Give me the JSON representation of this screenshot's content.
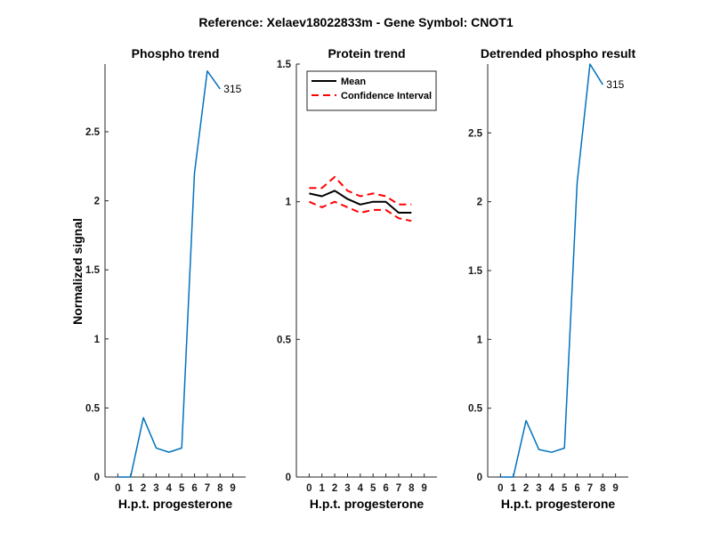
{
  "figure": {
    "title": "Reference:  Xelaev18022833m - Gene Symbol:  CNOT1",
    "ylabel": "Normalized signal"
  },
  "chart_data": [
    {
      "type": "line",
      "title": "Phospho trend",
      "xlabel": "H.p.t. progesterone",
      "ylabel": "Normalized signal",
      "xlim": [
        -1,
        10
      ],
      "ylim": [
        0,
        2.99
      ],
      "xticks": [
        0,
        1,
        2,
        3,
        4,
        5,
        6,
        7,
        8,
        9
      ],
      "yticks": [
        0,
        0.5,
        1,
        1.5,
        2,
        2.5
      ],
      "ytick_labels": [
        "0",
        "0.5",
        "1",
        "1.5",
        "2",
        "2.5"
      ],
      "series": [
        {
          "color": "#0072BD",
          "x": [
            0,
            1,
            2,
            3,
            4,
            5,
            6,
            7,
            8,
            9
          ],
          "y": [
            0,
            0,
            0.43,
            0.21,
            0.18,
            0.21,
            2.2,
            2.94,
            2.81,
            null
          ],
          "end_label": "315"
        }
      ]
    },
    {
      "type": "line",
      "title": "Protein trend",
      "xlabel": "H.p.t. progesterone",
      "ylabel": "",
      "xlim": [
        -1,
        10
      ],
      "ylim": [
        0,
        1.5
      ],
      "xticks": [
        0,
        1,
        2,
        3,
        4,
        5,
        6,
        7,
        8,
        9
      ],
      "yticks": [
        0,
        0.5,
        1,
        1.5
      ],
      "ytick_labels": [
        "0",
        "0.5",
        "1",
        "1.5"
      ],
      "legend": {
        "placement": "top-left"
      },
      "series": [
        {
          "name": "Mean",
          "color": "#000000",
          "dash": "solid",
          "x": [
            0,
            1,
            2,
            3,
            4,
            5,
            6,
            7,
            8,
            9
          ],
          "y": [
            1.03,
            1.02,
            1.04,
            1.01,
            0.99,
            1.0,
            1.0,
            0.96,
            0.96,
            null
          ]
        },
        {
          "name": "Confidence Interval",
          "color": "#FF0000",
          "dash": "dashed",
          "x": [
            0,
            1,
            2,
            3,
            4,
            5,
            6,
            7,
            8,
            9
          ],
          "y": [
            1.05,
            1.05,
            1.09,
            1.04,
            1.02,
            1.03,
            1.02,
            0.99,
            0.99,
            null
          ]
        },
        {
          "name": "",
          "color": "#FF0000",
          "dash": "dashed",
          "x": [
            0,
            1,
            2,
            3,
            4,
            5,
            6,
            7,
            8,
            9
          ],
          "y": [
            1.0,
            0.98,
            1.0,
            0.98,
            0.96,
            0.97,
            0.97,
            0.94,
            0.93,
            null
          ]
        }
      ]
    },
    {
      "type": "line",
      "title": "Detrended phospho result",
      "xlabel": "H.p.t. progesterone",
      "ylabel": "",
      "xlim": [
        -1,
        10
      ],
      "ylim": [
        0,
        3.0
      ],
      "xticks": [
        0,
        1,
        2,
        3,
        4,
        5,
        6,
        7,
        8,
        9
      ],
      "yticks": [
        0,
        0.5,
        1,
        1.5,
        2,
        2.5
      ],
      "ytick_labels": [
        "0",
        "0.5",
        "1",
        "1.5",
        "2",
        "2.5"
      ],
      "series": [
        {
          "color": "#0072BD",
          "x": [
            0,
            1,
            2,
            3,
            4,
            5,
            6,
            7,
            8,
            9
          ],
          "y": [
            0,
            0,
            0.41,
            0.2,
            0.18,
            0.21,
            2.14,
            3.0,
            2.85,
            null
          ],
          "end_label": "315"
        }
      ]
    }
  ]
}
